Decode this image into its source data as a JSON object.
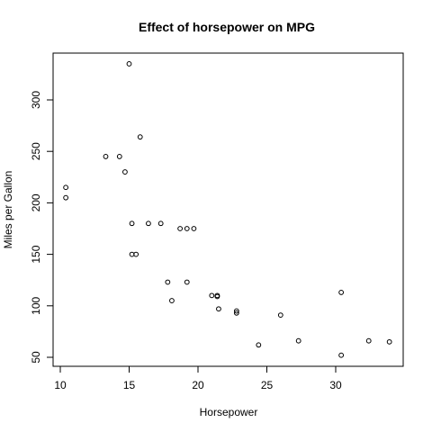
{
  "chart_data": {
    "type": "scatter",
    "title": "Effect of horsepower on MPG",
    "xlabel": "Horsepower",
    "ylabel": "Miles per Gallon",
    "xlim": [
      10,
      34
    ],
    "ylim": [
      50,
      335
    ],
    "xticks": [
      10,
      15,
      20,
      25,
      30
    ],
    "yticks": [
      50,
      100,
      150,
      200,
      250,
      300
    ],
    "grid": false,
    "legend": "none",
    "marker": "open-circle",
    "colors": {
      "points": "#000000",
      "axes": "#000000",
      "background": "#ffffff"
    },
    "points": [
      {
        "x": 10.4,
        "y": 215
      },
      {
        "x": 10.4,
        "y": 205
      },
      {
        "x": 13.3,
        "y": 245
      },
      {
        "x": 14.3,
        "y": 245
      },
      {
        "x": 14.7,
        "y": 230
      },
      {
        "x": 15.0,
        "y": 335
      },
      {
        "x": 15.2,
        "y": 180
      },
      {
        "x": 15.2,
        "y": 150
      },
      {
        "x": 15.5,
        "y": 150
      },
      {
        "x": 15.8,
        "y": 264
      },
      {
        "x": 16.4,
        "y": 180
      },
      {
        "x": 17.3,
        "y": 180
      },
      {
        "x": 17.8,
        "y": 123
      },
      {
        "x": 18.1,
        "y": 105
      },
      {
        "x": 18.7,
        "y": 175
      },
      {
        "x": 19.2,
        "y": 175
      },
      {
        "x": 19.2,
        "y": 123
      },
      {
        "x": 19.7,
        "y": 175
      },
      {
        "x": 21.0,
        "y": 110
      },
      {
        "x": 21.4,
        "y": 110
      },
      {
        "x": 21.4,
        "y": 109
      },
      {
        "x": 21.5,
        "y": 97
      },
      {
        "x": 22.8,
        "y": 95
      },
      {
        "x": 22.8,
        "y": 93
      },
      {
        "x": 24.4,
        "y": 62
      },
      {
        "x": 26.0,
        "y": 91
      },
      {
        "x": 27.3,
        "y": 66
      },
      {
        "x": 30.4,
        "y": 113
      },
      {
        "x": 30.4,
        "y": 52
      },
      {
        "x": 32.4,
        "y": 66
      },
      {
        "x": 33.9,
        "y": 65
      }
    ]
  }
}
